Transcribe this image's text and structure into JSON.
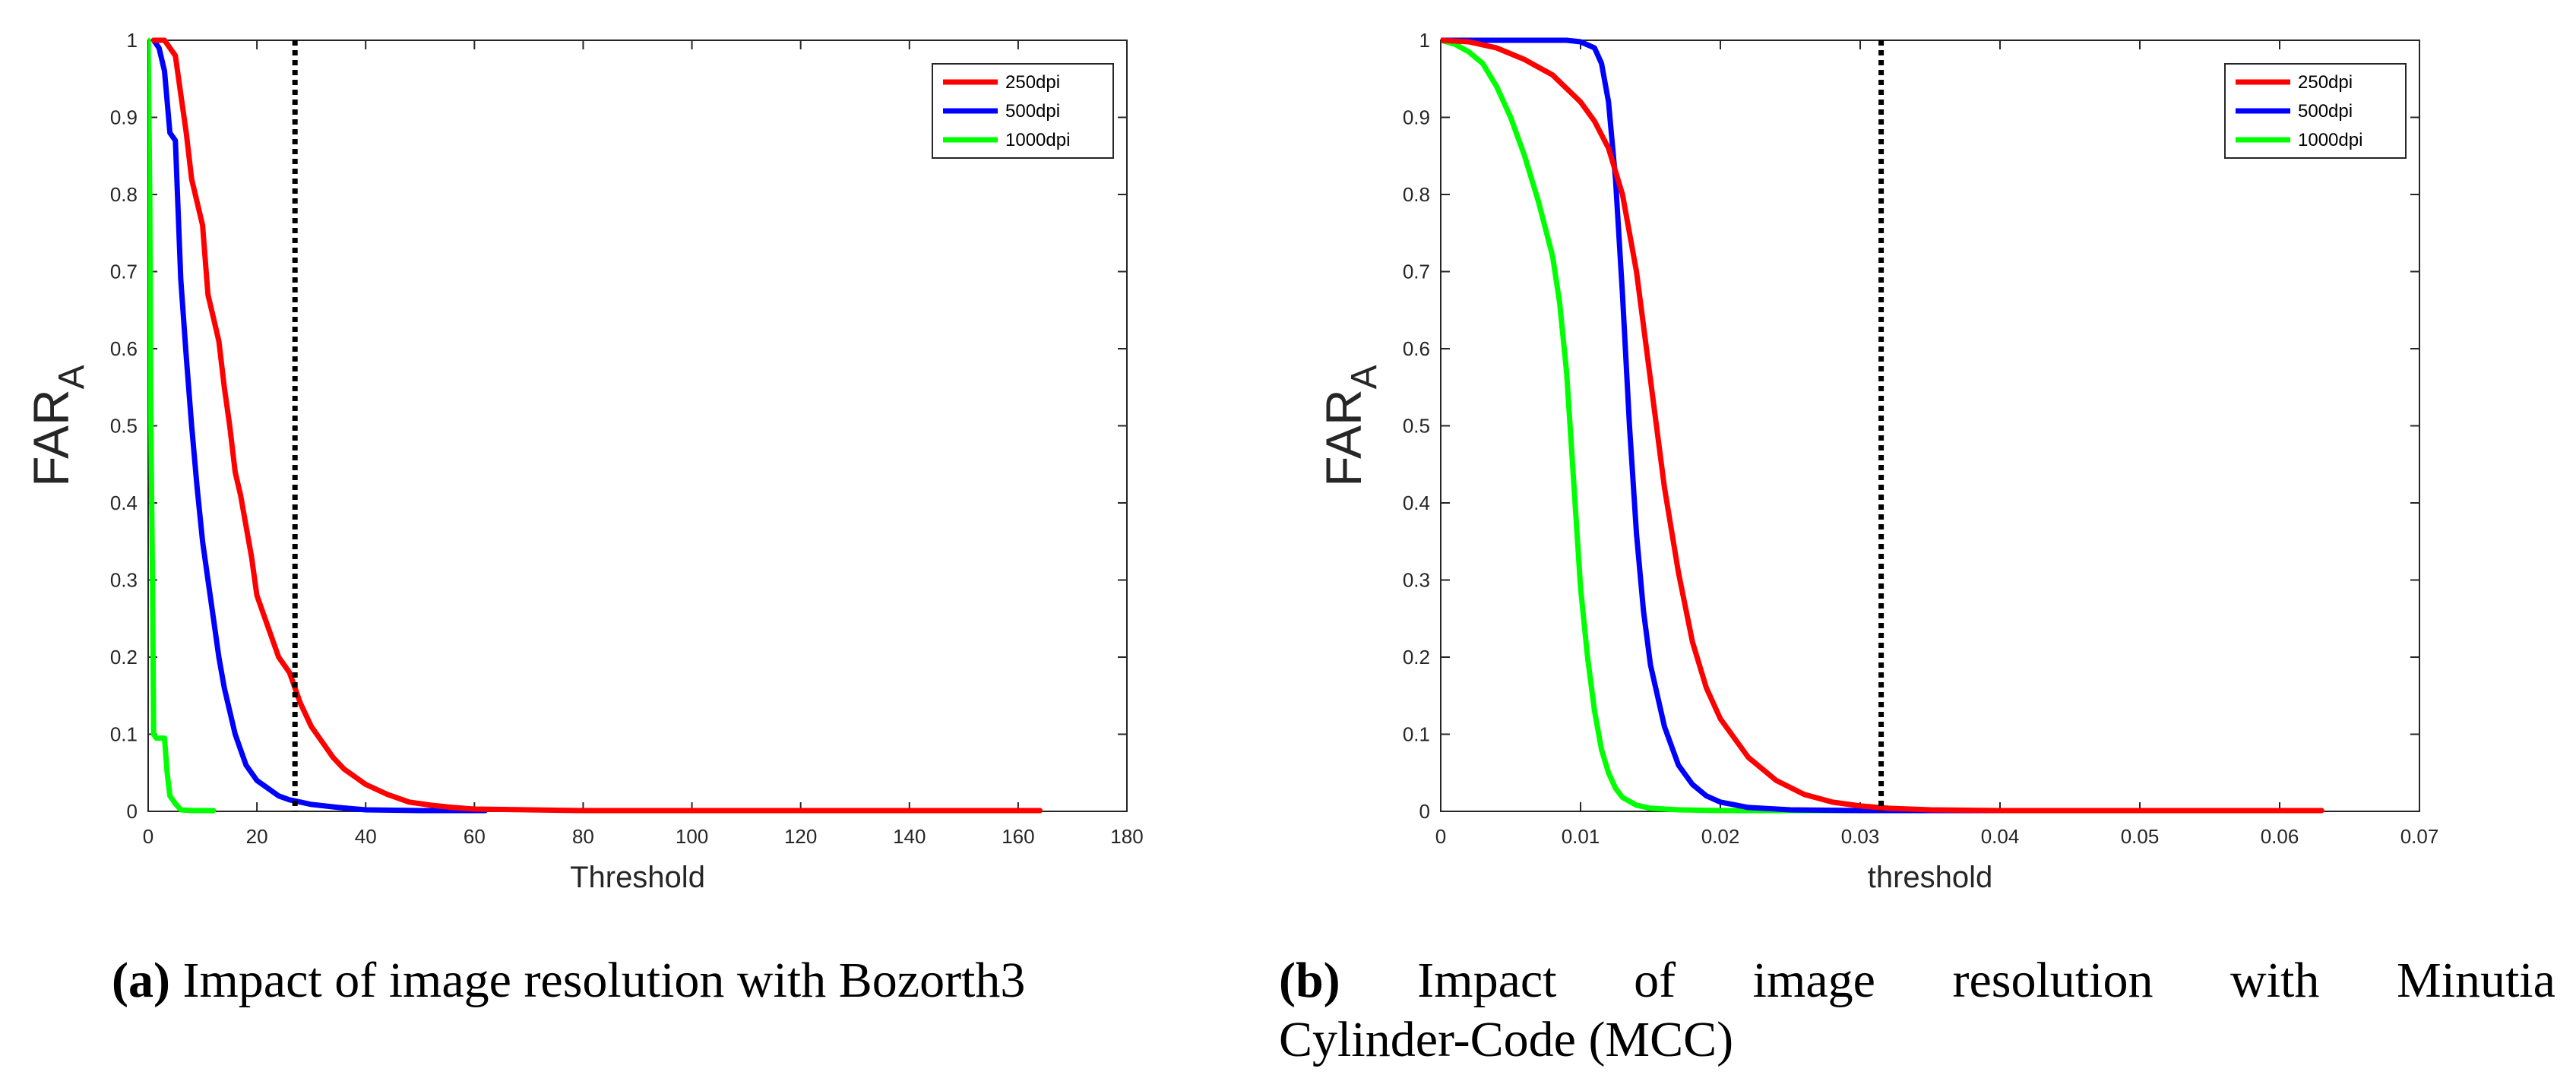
{
  "charts": [
    {
      "caption_label": "(a)",
      "caption_text": "Impact of image resolution with Bozorth3",
      "chart_data": {
        "type": "line",
        "xlabel": "Threshold",
        "ylabel": "FAR",
        "ylabel_sub": "A",
        "xlim": [
          0,
          180
        ],
        "ylim": [
          0,
          1
        ],
        "xticks": [
          0,
          20,
          40,
          60,
          80,
          100,
          120,
          140,
          160,
          180
        ],
        "yticks": [
          0,
          0.1,
          0.2,
          0.3,
          0.4,
          0.5,
          0.6,
          0.7,
          0.8,
          0.9,
          1
        ],
        "grid": false,
        "legend_position": "top-right",
        "vline": 27,
        "series": [
          {
            "name": "250dpi",
            "color": "#ff0000",
            "x": [
              1,
              3,
              4,
              5,
              6,
              7,
              8,
              9,
              10,
              11,
              12,
              13,
              14,
              15,
              16,
              17,
              18,
              19,
              20,
              22,
              24,
              26,
              27,
              28,
              30,
              32,
              34,
              36,
              38,
              40,
              44,
              48,
              52,
              56,
              60,
              70,
              80,
              100,
              120,
              140,
              164
            ],
            "y": [
              1,
              1,
              0.99,
              0.98,
              0.93,
              0.88,
              0.82,
              0.79,
              0.76,
              0.67,
              0.64,
              0.61,
              0.55,
              0.5,
              0.44,
              0.41,
              0.37,
              0.33,
              0.28,
              0.24,
              0.2,
              0.18,
              0.16,
              0.14,
              0.11,
              0.09,
              0.07,
              0.055,
              0.045,
              0.035,
              0.022,
              0.012,
              0.008,
              0.005,
              0.003,
              0.002,
              0.001,
              0.001,
              0.001,
              0.001,
              0.001
            ]
          },
          {
            "name": "500dpi",
            "color": "#0000ff",
            "x": [
              1,
              2,
              3,
              4,
              5,
              6,
              7,
              8,
              9,
              10,
              11,
              12,
              13,
              14,
              15,
              16,
              17,
              18,
              20,
              22,
              24,
              26,
              28,
              30,
              35,
              40,
              50,
              62
            ],
            "y": [
              1,
              0.99,
              0.96,
              0.88,
              0.87,
              0.69,
              0.59,
              0.5,
              0.42,
              0.35,
              0.3,
              0.25,
              0.2,
              0.16,
              0.13,
              0.1,
              0.08,
              0.06,
              0.04,
              0.03,
              0.02,
              0.015,
              0.012,
              0.009,
              0.005,
              0.002,
              0.001,
              0.001
            ]
          },
          {
            "name": "1000dpi",
            "color": "#00ff00",
            "x": [
              0,
              0.3,
              0.5,
              0.8,
              1,
              1.5,
              3,
              3.5,
              4,
              5,
              6,
              8,
              10,
              12
            ],
            "y": [
              1,
              0.8,
              0.5,
              0.3,
              0.1,
              0.095,
              0.095,
              0.05,
              0.02,
              0.01,
              0.002,
              0.001,
              0.001,
              0.001
            ]
          }
        ]
      }
    },
    {
      "caption_label": "(b)",
      "caption_line1_words": [
        "Impact",
        "of",
        "image",
        "resolution",
        "with",
        "Minutia"
      ],
      "caption_line2": "Cylinder-Code (MCC)",
      "chart_data": {
        "type": "line",
        "xlabel": "threshold",
        "ylabel": "FAR",
        "ylabel_sub": "A",
        "xlim": [
          0,
          0.07
        ],
        "ylim": [
          0,
          1
        ],
        "xticks": [
          0,
          0.01,
          0.02,
          0.03,
          0.04,
          0.05,
          0.06,
          0.07
        ],
        "yticks": [
          0,
          0.1,
          0.2,
          0.3,
          0.4,
          0.5,
          0.6,
          0.7,
          0.8,
          0.9,
          1
        ],
        "grid": false,
        "legend_position": "top-right",
        "vline": 0.0315,
        "series": [
          {
            "name": "250dpi",
            "color": "#ff0000",
            "x": [
              0,
              0.002,
              0.004,
              0.006,
              0.008,
              0.01,
              0.011,
              0.012,
              0.013,
              0.014,
              0.015,
              0.016,
              0.017,
              0.018,
              0.019,
              0.02,
              0.022,
              0.024,
              0.026,
              0.028,
              0.03,
              0.032,
              0.035,
              0.04,
              0.05,
              0.063
            ],
            "y": [
              1,
              0.998,
              0.99,
              0.975,
              0.955,
              0.92,
              0.895,
              0.86,
              0.8,
              0.7,
              0.56,
              0.42,
              0.31,
              0.22,
              0.16,
              0.12,
              0.07,
              0.04,
              0.022,
              0.012,
              0.007,
              0.004,
              0.002,
              0.001,
              0.001,
              0.001
            ]
          },
          {
            "name": "500dpi",
            "color": "#0000ff",
            "x": [
              0,
              0.005,
              0.009,
              0.01,
              0.011,
              0.0115,
              0.012,
              0.0125,
              0.013,
              0.0135,
              0.014,
              0.0145,
              0.015,
              0.016,
              0.017,
              0.018,
              0.019,
              0.02,
              0.022,
              0.025,
              0.03,
              0.035,
              0.042
            ],
            "y": [
              1,
              1,
              1,
              0.998,
              0.99,
              0.97,
              0.92,
              0.82,
              0.67,
              0.5,
              0.36,
              0.26,
              0.19,
              0.11,
              0.06,
              0.035,
              0.02,
              0.012,
              0.005,
              0.002,
              0.001,
              0.001,
              0.001
            ]
          },
          {
            "name": "1000dpi",
            "color": "#00ff00",
            "x": [
              0,
              0.001,
              0.002,
              0.003,
              0.004,
              0.005,
              0.006,
              0.007,
              0.008,
              0.0085,
              0.009,
              0.0095,
              0.01,
              0.0105,
              0.011,
              0.0115,
              0.012,
              0.0125,
              0.013,
              0.014,
              0.015,
              0.017,
              0.02,
              0.025,
              0.03,
              0.035
            ],
            "y": [
              1,
              0.995,
              0.985,
              0.97,
              0.94,
              0.9,
              0.85,
              0.79,
              0.72,
              0.66,
              0.57,
              0.43,
              0.29,
              0.2,
              0.13,
              0.08,
              0.05,
              0.03,
              0.018,
              0.008,
              0.004,
              0.002,
              0.001,
              0.001,
              0.001,
              0.001
            ]
          }
        ]
      }
    }
  ]
}
